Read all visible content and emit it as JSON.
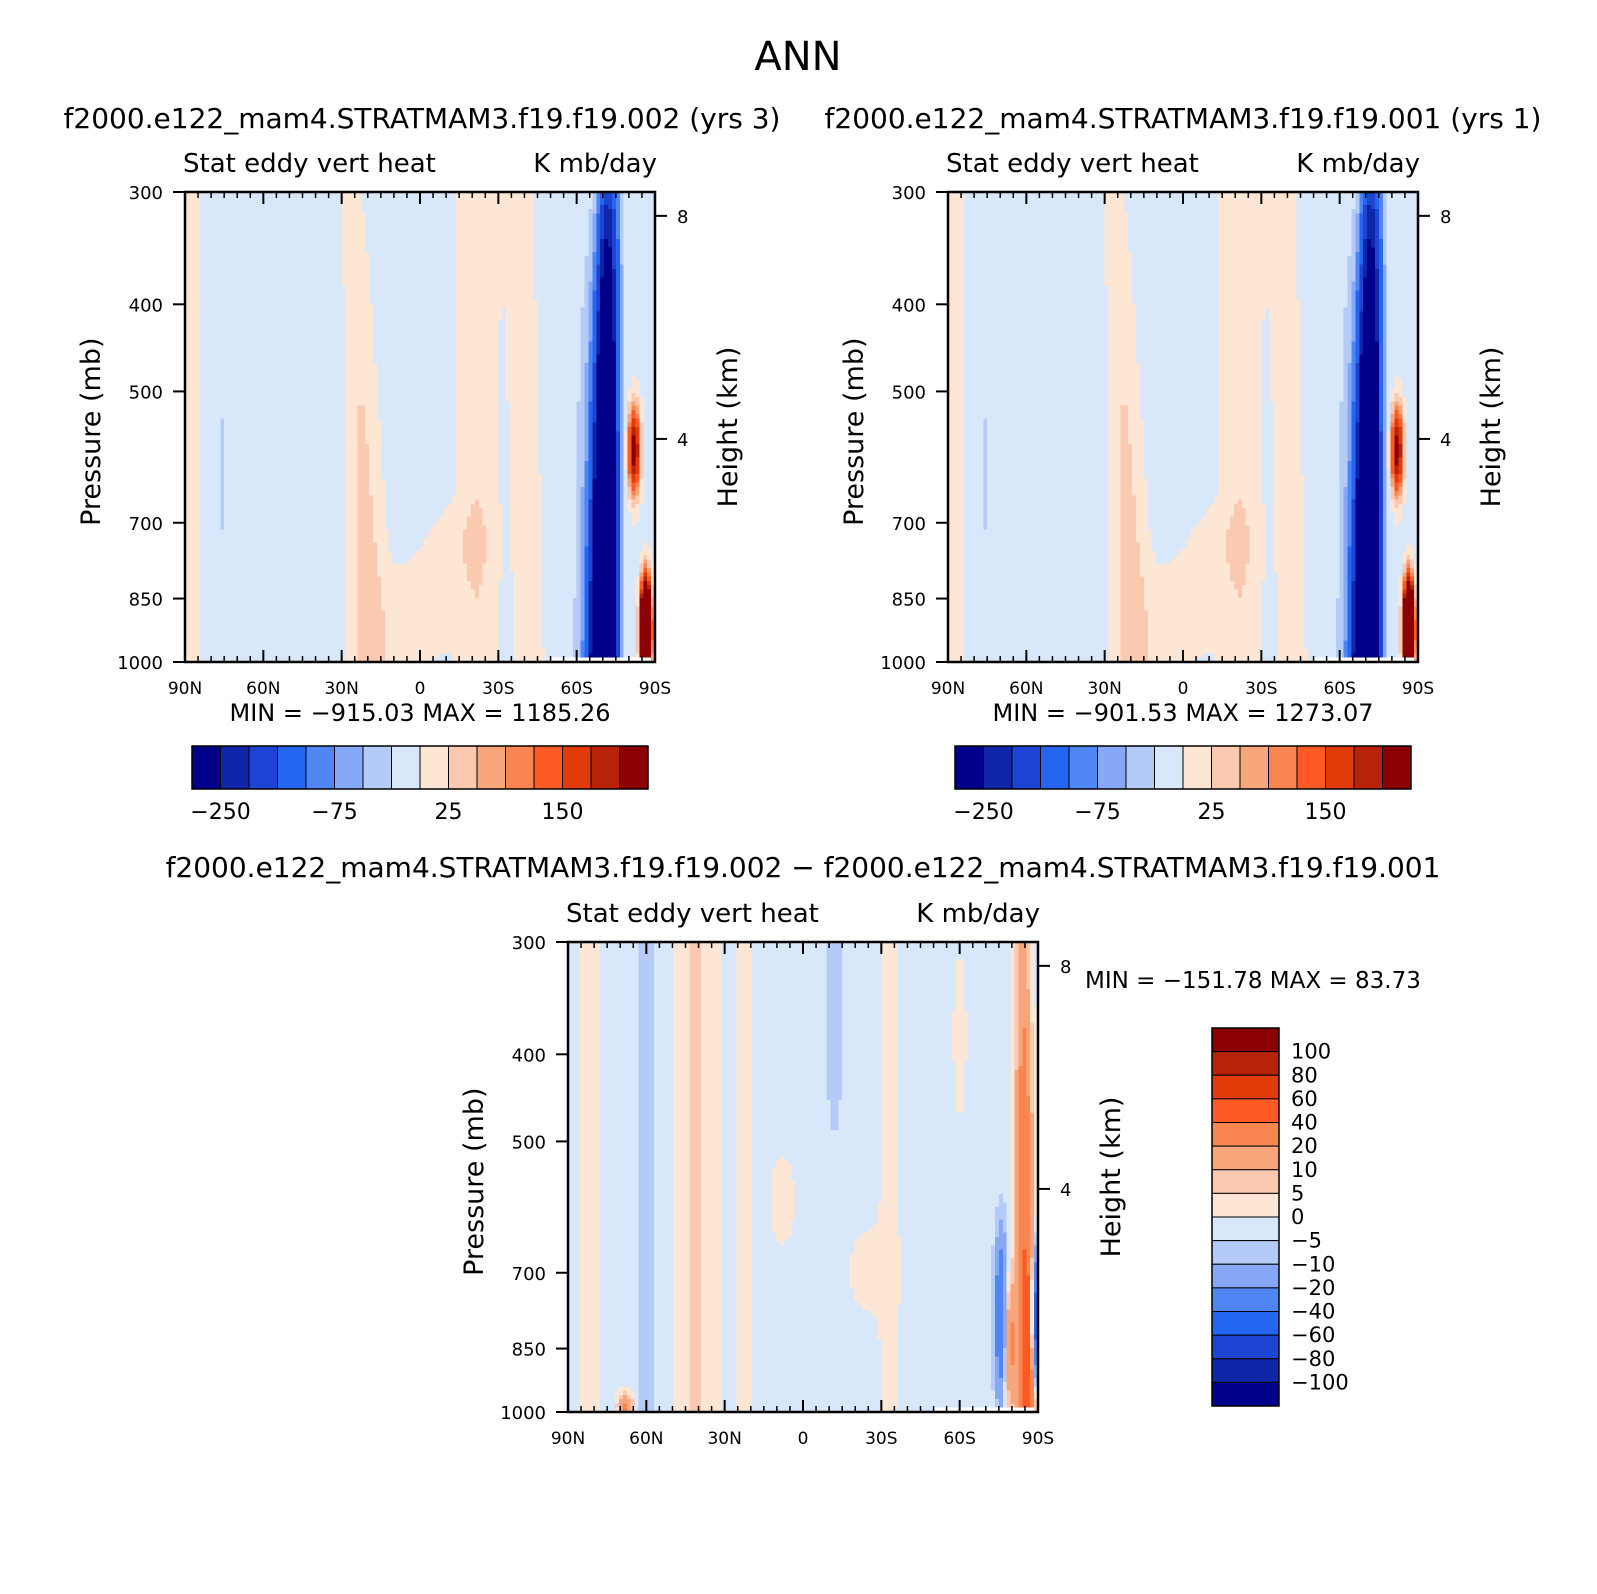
{
  "figure": {
    "title": "ANN"
  },
  "colors": {
    "blue_scale": [
      "#00008b",
      "#0f26a8",
      "#1d44d2",
      "#2466f2",
      "#4f85f5",
      "#86a8f7",
      "#b5cbf7",
      "#d8e8fa"
    ],
    "red_scale": [
      "#fde6d3",
      "#fac9b0",
      "#f7a67c",
      "#f98550",
      "#fd5a24",
      "#e23b0a",
      "#b82208",
      "#8b0000"
    ],
    "missing": "#ffffff"
  },
  "chart_data": [
    {
      "type": "heatmap",
      "title": "f2000.e122_mam4.STRATMAM3.f19.f19.002 (yrs 3)",
      "left_label": "Stat eddy vert heat",
      "right_label": "K mb/day",
      "xlabel": "",
      "ylabel": "Pressure (mb)",
      "y2label": "Height (km)",
      "x_ticks": [
        "90N",
        "60N",
        "30N",
        "0",
        "30S",
        "60S",
        "90S"
      ],
      "y_ticks": [
        "300",
        "400",
        "500",
        "700",
        "850",
        "1000"
      ],
      "y2_ticks": [
        "8",
        "4"
      ],
      "xlim": [
        90,
        -90
      ],
      "ylim": [
        1000,
        300
      ],
      "y_scale": "log",
      "min_max_text": "MIN = −915.03   MAX = 1185.26",
      "min": -915.03,
      "max": 1185.26,
      "colorbar": {
        "orientation": "horizontal",
        "levels": [
          -250,
          -200,
          -150,
          -100,
          -75,
          -50,
          -25,
          0,
          25,
          50,
          75,
          100,
          150,
          200,
          250
        ],
        "labels": [
          "−250",
          "−75",
          "25",
          "150"
        ]
      }
    },
    {
      "type": "heatmap",
      "title": "f2000.e122_mam4.STRATMAM3.f19.f19.001 (yrs 1)",
      "left_label": "Stat eddy vert heat",
      "right_label": "K mb/day",
      "xlabel": "",
      "ylabel": "Pressure (mb)",
      "y2label": "Height (km)",
      "x_ticks": [
        "90N",
        "60N",
        "30N",
        "0",
        "30S",
        "60S",
        "90S"
      ],
      "y_ticks": [
        "300",
        "400",
        "500",
        "700",
        "850",
        "1000"
      ],
      "y2_ticks": [
        "8",
        "4"
      ],
      "xlim": [
        90,
        -90
      ],
      "ylim": [
        1000,
        300
      ],
      "y_scale": "log",
      "min_max_text": "MIN = −901.53   MAX = 1273.07",
      "min": -901.53,
      "max": 1273.07,
      "colorbar": {
        "orientation": "horizontal",
        "levels": [
          -250,
          -200,
          -150,
          -100,
          -75,
          -50,
          -25,
          0,
          25,
          50,
          75,
          100,
          150,
          200,
          250
        ],
        "labels": [
          "−250",
          "−75",
          "25",
          "150"
        ]
      }
    },
    {
      "type": "heatmap",
      "title": "f2000.e122_mam4.STRATMAM3.f19.f19.002 − f2000.e122_mam4.STRATMAM3.f19.f19.001",
      "left_label": "Stat eddy vert heat",
      "right_label": "K mb/day",
      "xlabel": "",
      "ylabel": "Pressure (mb)",
      "y2label": "Height (km)",
      "x_ticks": [
        "90N",
        "60N",
        "30N",
        "0",
        "30S",
        "60S",
        "90S"
      ],
      "y_ticks": [
        "300",
        "400",
        "500",
        "700",
        "850",
        "1000"
      ],
      "y2_ticks": [
        "8",
        "4"
      ],
      "xlim": [
        90,
        -90
      ],
      "ylim": [
        1000,
        300
      ],
      "y_scale": "log",
      "min_max_text": "MIN = −151.78   MAX =  83.73",
      "min": -151.78,
      "max": 83.73,
      "colorbar": {
        "orientation": "vertical",
        "levels": [
          -100,
          -80,
          -60,
          -40,
          -20,
          -10,
          -5,
          0,
          5,
          10,
          20,
          40,
          60,
          80,
          100
        ],
        "labels": [
          "100",
          "80",
          "60",
          "40",
          "20",
          "10",
          "5",
          "0",
          "−5",
          "−10",
          "−20",
          "−40",
          "−60",
          "−80",
          "−100"
        ]
      }
    }
  ]
}
